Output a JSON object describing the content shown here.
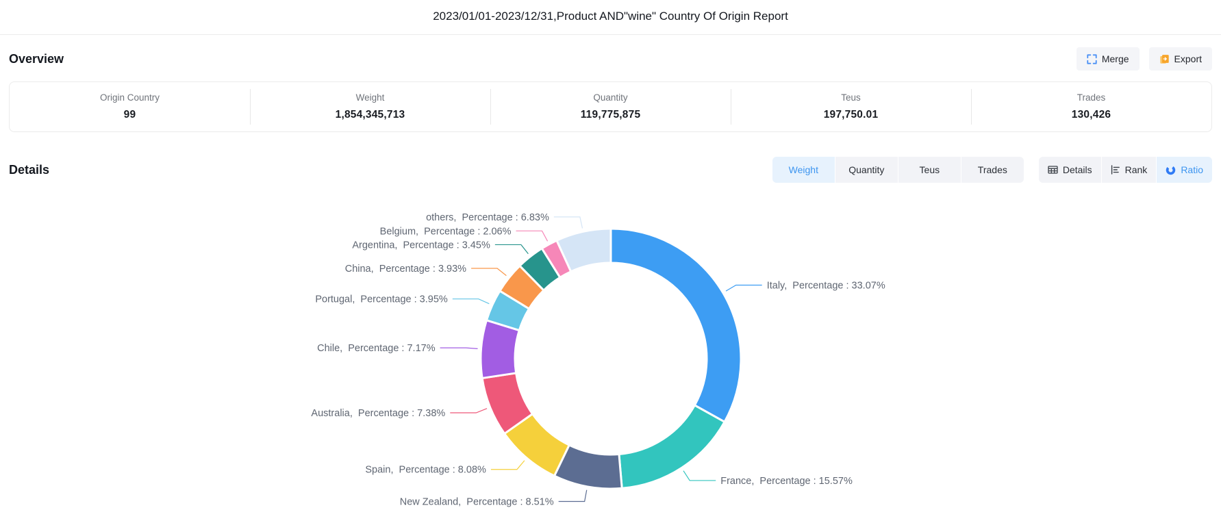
{
  "header": {
    "title": "2023/01/01-2023/12/31,Product AND\"wine\" Country Of Origin Report"
  },
  "overview": {
    "heading": "Overview",
    "merge_label": "Merge",
    "export_label": "Export",
    "stats": [
      {
        "label": "Origin Country",
        "value": "99"
      },
      {
        "label": "Weight",
        "value": "1,854,345,713"
      },
      {
        "label": "Quantity",
        "value": "119,775,875"
      },
      {
        "label": "Teus",
        "value": "197,750.01"
      },
      {
        "label": "Trades",
        "value": "130,426"
      }
    ]
  },
  "details": {
    "heading": "Details",
    "metric_tabs": [
      {
        "label": "Weight",
        "active": true
      },
      {
        "label": "Quantity",
        "active": false
      },
      {
        "label": "Teus",
        "active": false
      },
      {
        "label": "Trades",
        "active": false
      }
    ],
    "view_tabs": [
      {
        "label": "Details",
        "icon": "table-icon",
        "active": false
      },
      {
        "label": "Rank",
        "icon": "rank-icon",
        "active": false
      },
      {
        "label": "Ratio",
        "icon": "donut-icon",
        "active": true
      }
    ]
  },
  "chart_data": {
    "type": "pie",
    "donut": true,
    "start_angle_deg": 0,
    "clockwise": true,
    "unit": "%",
    "label_word": "Percentage",
    "legend": "none",
    "slices": [
      {
        "name": "Italy",
        "value": 33.07,
        "color": "#3D9DF3"
      },
      {
        "name": "France",
        "value": 15.57,
        "color": "#32C5BE"
      },
      {
        "name": "New Zealand",
        "value": 8.51,
        "color": "#5C6D92"
      },
      {
        "name": "Spain",
        "value": 8.08,
        "color": "#F5D03B"
      },
      {
        "name": "Australia",
        "value": 7.38,
        "color": "#EE5879"
      },
      {
        "name": "Chile",
        "value": 7.17,
        "color": "#A25DE3"
      },
      {
        "name": "Portugal",
        "value": 3.95,
        "color": "#65C6E6"
      },
      {
        "name": "China",
        "value": 3.93,
        "color": "#F9974B"
      },
      {
        "name": "Argentina",
        "value": 3.45,
        "color": "#27948C"
      },
      {
        "name": "Belgium",
        "value": 2.06,
        "color": "#F687B8"
      },
      {
        "name": "others",
        "value": 6.83,
        "color": "#D5E5F6"
      }
    ]
  },
  "colors": {
    "accent_blue": "#3D95F0",
    "active_tab_bg": "#E7F2FD",
    "tab_bg": "#F2F3F7",
    "merge_icon_blue": "#4A90F5",
    "export_icon_orange": "#F7A52B",
    "label_gray": "#5F6672"
  }
}
